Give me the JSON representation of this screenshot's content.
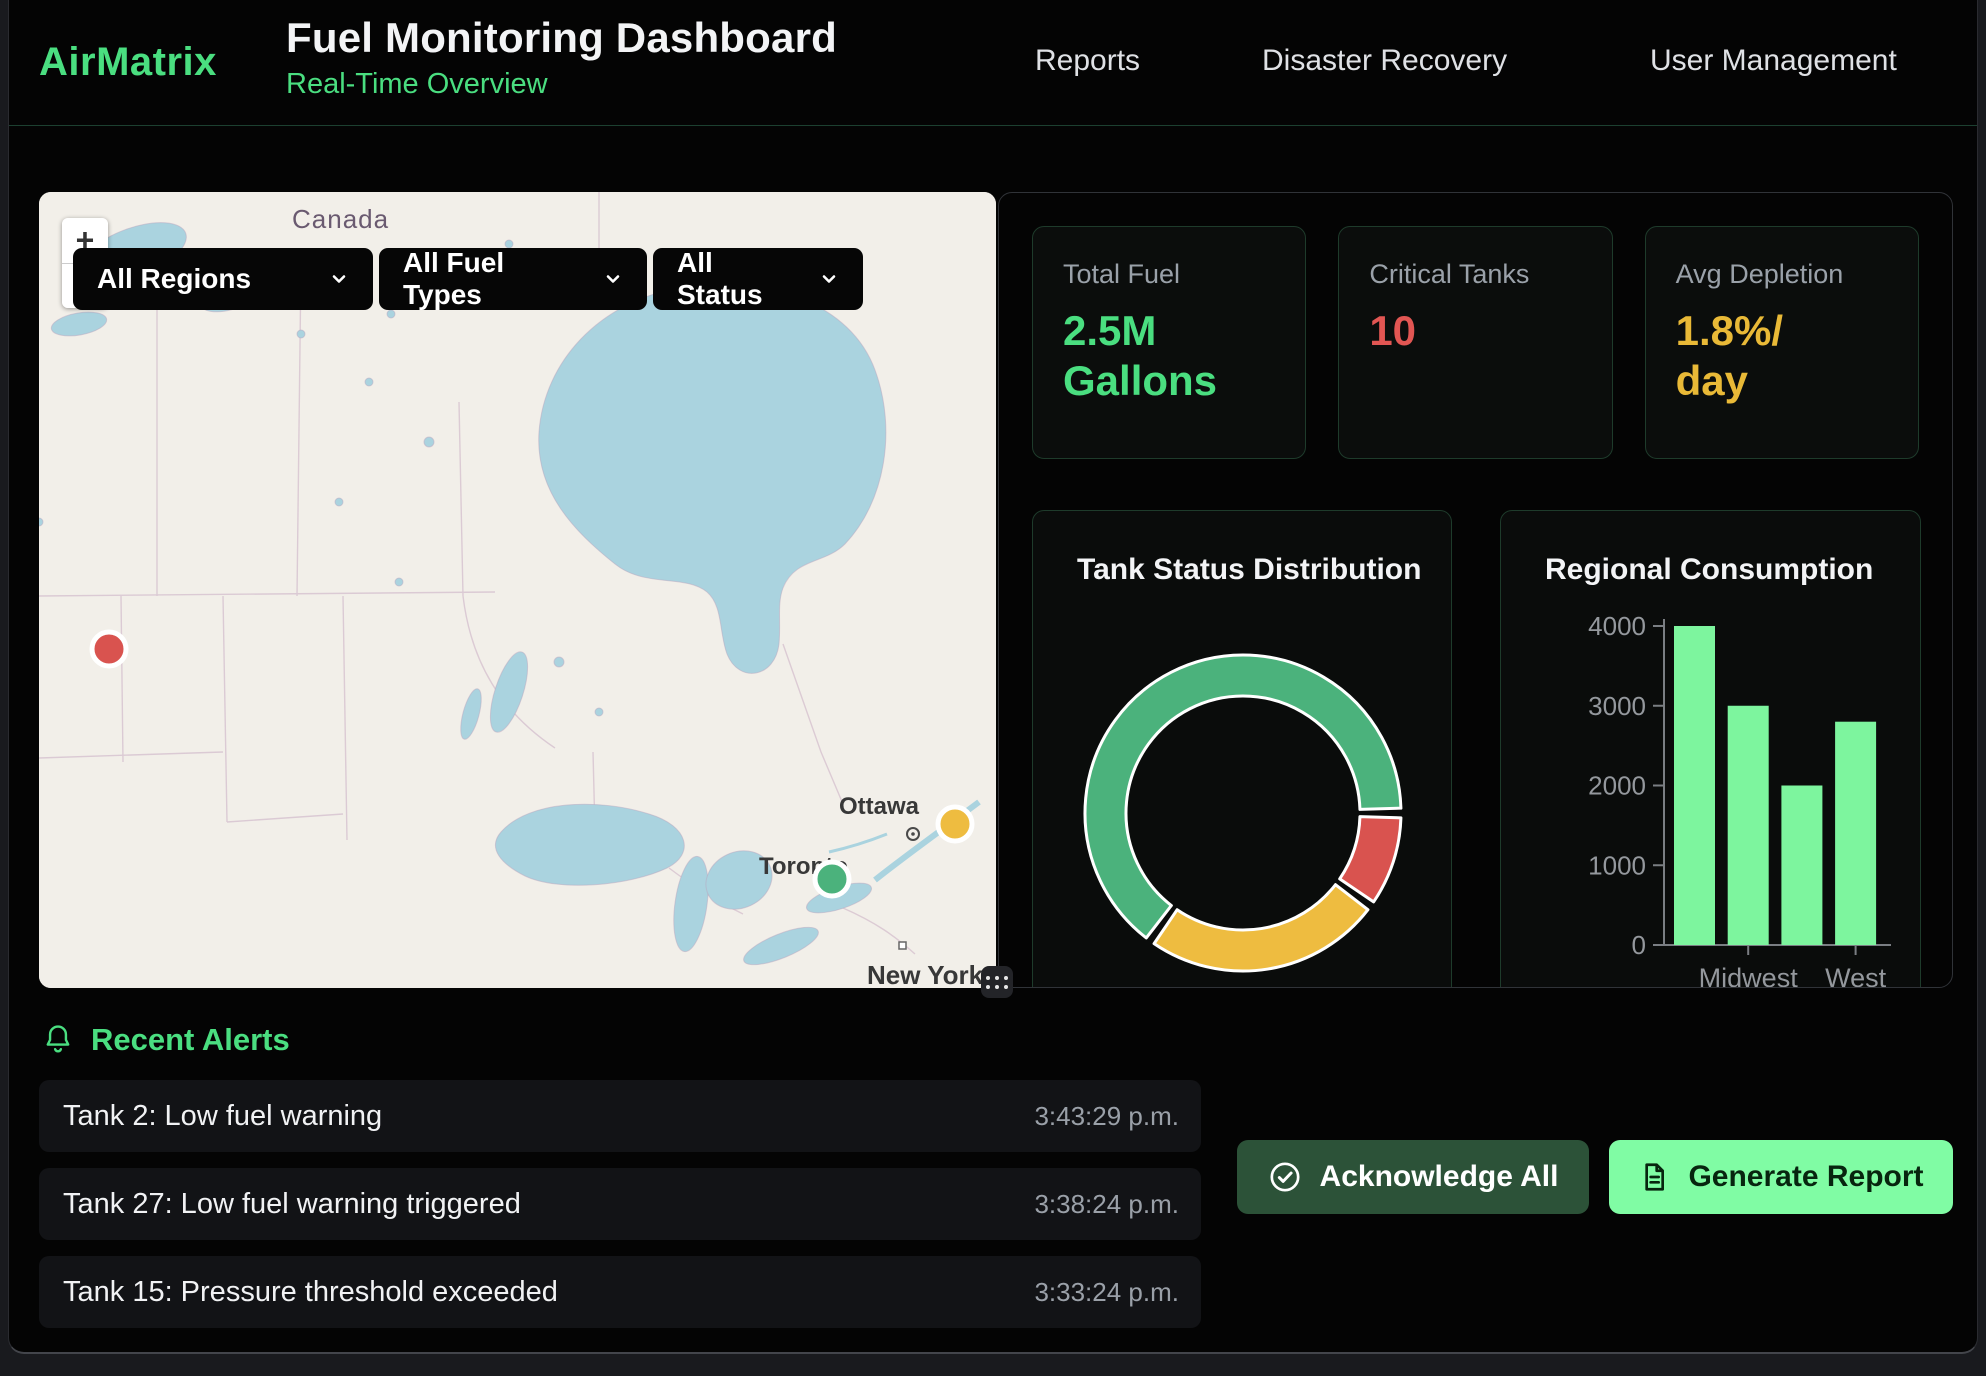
{
  "header": {
    "brand": "AirMatrix",
    "title": "Fuel Monitoring Dashboard",
    "subtitle": "Real-Time Overview",
    "nav": [
      "Reports",
      "Disaster Recovery",
      "User Management"
    ]
  },
  "map": {
    "zoom_in": "+",
    "zoom_out": "−",
    "filters": [
      {
        "label": "All Regions"
      },
      {
        "label": "All Fuel Types"
      },
      {
        "label": "All Status"
      }
    ],
    "place_labels": {
      "country": "Canada",
      "city_ottawa": "Ottawa",
      "city_toronto": "Toronto",
      "city_newyork": "New York"
    },
    "markers": [
      {
        "status": "critical",
        "color": "#d9534f"
      },
      {
        "status": "warning",
        "color": "#eebc40"
      },
      {
        "status": "normal",
        "color": "#4bb27c"
      }
    ]
  },
  "kpis": [
    {
      "label": "Total Fuel",
      "value": "2.5M\nGallons",
      "color": "#4ade80"
    },
    {
      "label": "Critical Tanks",
      "value": "10",
      "color": "#e25653"
    },
    {
      "label": "Avg Depletion",
      "value": "1.8%/\nday",
      "color": "#e9b937"
    }
  ],
  "chart_data": [
    {
      "type": "pie",
      "donut": true,
      "title": "Tank Status Distribution",
      "legend": "none",
      "segments": [
        {
          "label": "normal-green",
          "value": 65,
          "color": "#4bb27c"
        },
        {
          "label": "warning-amber",
          "value": 25,
          "color": "#eebc40"
        },
        {
          "label": "critical-red",
          "value": 10,
          "color": "#d9534f"
        }
      ]
    },
    {
      "type": "bar",
      "title": "Regional Consumption",
      "categories": [
        "",
        "Midwest",
        "",
        "West"
      ],
      "values": [
        4000,
        3000,
        2000,
        2800
      ],
      "bar_color": "#7df59e",
      "xlabel": "",
      "ylabel": "",
      "ylim": [
        0,
        4000
      ],
      "yticks": [
        0,
        1000,
        2000,
        3000,
        4000
      ],
      "grid": false
    }
  ],
  "alerts": {
    "title": "Recent Alerts",
    "items": [
      {
        "text": "Tank 2: Low fuel warning",
        "time": "3:43:29 p.m."
      },
      {
        "text": "Tank 27: Low fuel warning triggered",
        "time": "3:38:24 p.m."
      },
      {
        "text": "Tank 15: Pressure threshold exceeded",
        "time": "3:33:24 p.m."
      }
    ]
  },
  "actions": {
    "acknowledge_label": "Acknowledge All",
    "report_label": "Generate Report"
  }
}
